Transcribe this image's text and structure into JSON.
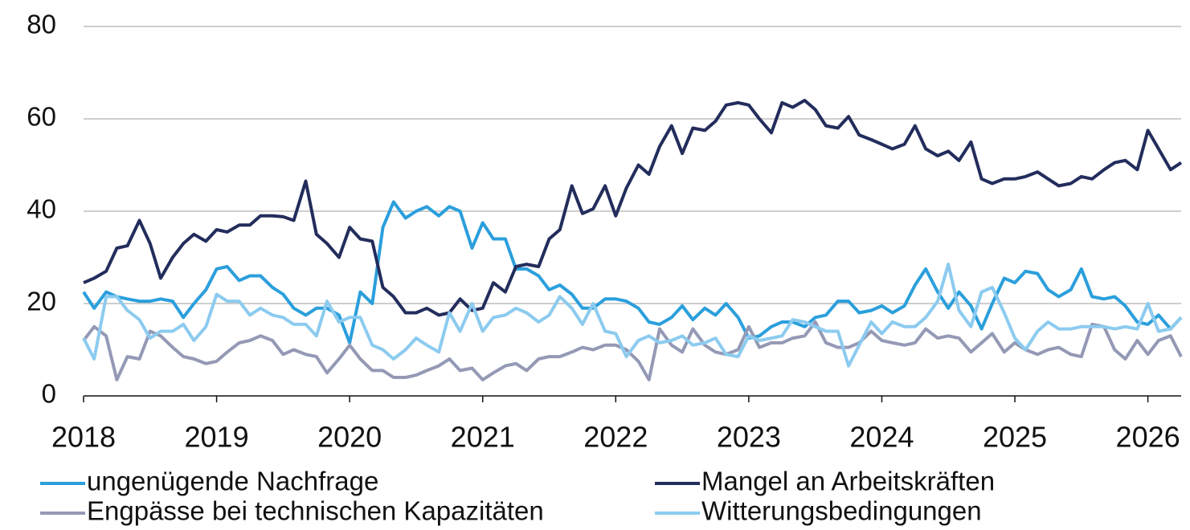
{
  "chart_data": {
    "type": "line",
    "x": [
      2018,
      2018.08,
      2018.17,
      2018.25,
      2018.33,
      2018.42,
      2018.5,
      2018.58,
      2018.67,
      2018.75,
      2018.83,
      2018.92,
      2019,
      2019.08,
      2019.17,
      2019.25,
      2019.33,
      2019.42,
      2019.5,
      2019.58,
      2019.67,
      2019.75,
      2019.83,
      2019.92,
      2020,
      2020.08,
      2020.17,
      2020.25,
      2020.33,
      2020.42,
      2020.5,
      2020.58,
      2020.67,
      2020.75,
      2020.83,
      2020.92,
      2021,
      2021.08,
      2021.17,
      2021.25,
      2021.33,
      2021.42,
      2021.5,
      2021.58,
      2021.67,
      2021.75,
      2021.83,
      2021.92,
      2022,
      2022.08,
      2022.17,
      2022.25,
      2022.33,
      2022.42,
      2022.5,
      2022.58,
      2022.67,
      2022.75,
      2022.83,
      2022.92,
      2023,
      2023.08,
      2023.17,
      2023.25,
      2023.33,
      2023.42,
      2023.5,
      2023.58,
      2023.67,
      2023.75,
      2023.83,
      2023.92,
      2024,
      2024.08,
      2024.17,
      2024.25,
      2024.33,
      2024.42,
      2024.5,
      2024.58,
      2024.67,
      2024.75,
      2024.83,
      2024.92,
      2025,
      2025.08,
      2025.17,
      2025.25,
      2025.33,
      2025.42,
      2025.5,
      2025.58,
      2025.67,
      2025.75,
      2025.83,
      2025.92,
      2026,
      2026.08,
      2026.17,
      2026.25
    ],
    "series": [
      {
        "name": "ungenügende Nachfrage",
        "color": "#2b9fdc",
        "values": [
          22.5,
          19,
          22.5,
          21.5,
          21,
          20.5,
          20.5,
          21,
          20.5,
          17,
          20,
          23,
          27.5,
          28,
          25,
          26,
          26,
          23.5,
          22,
          19,
          17.5,
          19,
          19,
          17.5,
          11.5,
          22.5,
          20,
          36.5,
          42,
          38.5,
          40,
          41,
          39,
          41,
          40,
          32,
          37.5,
          34,
          34,
          27.5,
          27.5,
          26,
          23,
          24,
          22,
          19,
          19,
          21,
          21,
          20.5,
          19,
          16,
          15.5,
          17,
          19.5,
          16.5,
          19,
          17.5,
          20,
          17,
          12.5,
          13,
          15,
          16,
          16,
          15,
          17,
          17.5,
          20.5,
          20.5,
          18,
          18.5,
          19.5,
          18,
          19.5,
          24,
          27.5,
          22.5,
          19,
          22.5,
          19.5,
          14.5,
          20,
          25.5,
          24.5,
          27,
          26.5,
          23,
          21.5,
          23,
          27.5,
          21.5,
          21,
          21.5,
          19.5,
          16,
          15.5,
          17.5,
          14.5,
          17
        ]
      },
      {
        "name": "Mangel an Arbeitskräften",
        "color": "#232d5c",
        "values": [
          24.5,
          25.5,
          27,
          32,
          32.5,
          38,
          33,
          25.5,
          30,
          33,
          35,
          33.5,
          36,
          35.5,
          37,
          37,
          39,
          39,
          38.8,
          38,
          46.5,
          35,
          33,
          30,
          36.5,
          34,
          33.5,
          23.5,
          21.5,
          18,
          18,
          19,
          17.5,
          18,
          21,
          18.5,
          19,
          24.5,
          22.5,
          28,
          28.5,
          28,
          34,
          36,
          45.5,
          39.5,
          40.5,
          45.5,
          39,
          45,
          50,
          48,
          54,
          58.5,
          52.5,
          58,
          57.5,
          59.5,
          63,
          63.5,
          63,
          60,
          57,
          63.5,
          62.5,
          64,
          62,
          58.5,
          58,
          60.5,
          56.5,
          55.5,
          54.5,
          53.5,
          54.5,
          58.5,
          53.5,
          52,
          53,
          51,
          55,
          47,
          46,
          47,
          47,
          47.5,
          48.5,
          47,
          45.5,
          46,
          47.5,
          47,
          49,
          50.5,
          51,
          49,
          57.5,
          53.5,
          49,
          50.5
        ]
      },
      {
        "name": "Engpässe bei technischen Kapazitäten",
        "color": "#9499b5",
        "values": [
          12,
          15,
          13,
          3.5,
          8.5,
          8,
          14,
          13,
          10.5,
          8.5,
          8,
          7,
          7.5,
          9.5,
          11.5,
          12,
          13,
          12,
          9,
          10,
          9,
          8.5,
          5,
          8,
          11,
          8,
          5.5,
          5.5,
          4,
          4,
          4.5,
          5.5,
          6.5,
          8,
          5.5,
          6,
          3.5,
          5,
          6.5,
          7,
          5.5,
          8,
          8.5,
          8.5,
          9.5,
          10.5,
          10,
          11,
          11,
          10,
          7.5,
          3.5,
          14.5,
          11,
          9.5,
          14.5,
          11,
          9.5,
          9,
          10,
          15,
          10.5,
          11.5,
          11.5,
          12.5,
          13,
          16,
          11.5,
          10.5,
          10.5,
          11.5,
          14,
          12,
          11.5,
          11,
          11.5,
          14.5,
          12.5,
          13,
          12.5,
          9.5,
          11.5,
          13.5,
          9.5,
          11.5,
          10,
          9,
          10,
          10.5,
          9,
          8.5,
          15.5,
          15,
          10,
          8,
          12,
          9,
          12,
          13,
          8.5
        ]
      },
      {
        "name": "Witterungsbedingungen",
        "color": "#8ccbef",
        "values": [
          12.5,
          8,
          21.5,
          21.5,
          18.5,
          16.5,
          12.5,
          14,
          14,
          15.5,
          12,
          15,
          22,
          20.5,
          20.5,
          17.5,
          19,
          17.5,
          17,
          15.5,
          15.5,
          13,
          20.5,
          16,
          17,
          17,
          11,
          10,
          8,
          10,
          12.5,
          11,
          9.5,
          18,
          14,
          20,
          14,
          17,
          17.5,
          19,
          18,
          16,
          17.5,
          21.5,
          19,
          15.5,
          20,
          14,
          13.5,
          8.5,
          12,
          13,
          11.5,
          12,
          13,
          11,
          11.5,
          12.5,
          9,
          8.5,
          13,
          12,
          12.5,
          13,
          16.5,
          16,
          15,
          14,
          14,
          6.5,
          11,
          16,
          13.5,
          16,
          15,
          15,
          17,
          20.5,
          28.5,
          18.5,
          15,
          22.5,
          23.5,
          18,
          12.5,
          10,
          14,
          16,
          14.5,
          14.5,
          15,
          15,
          15,
          14.5,
          15,
          14.5,
          20,
          14,
          14.5,
          17
        ]
      }
    ],
    "xlim": [
      2018,
      2026.25
    ],
    "xticks": [
      2018,
      2019,
      2020,
      2021,
      2022,
      2023,
      2024,
      2025,
      2026
    ],
    "ylim": [
      0,
      80
    ],
    "yticks": [
      0,
      20,
      40,
      60,
      80
    ],
    "grid": true,
    "legend": "bottom"
  }
}
